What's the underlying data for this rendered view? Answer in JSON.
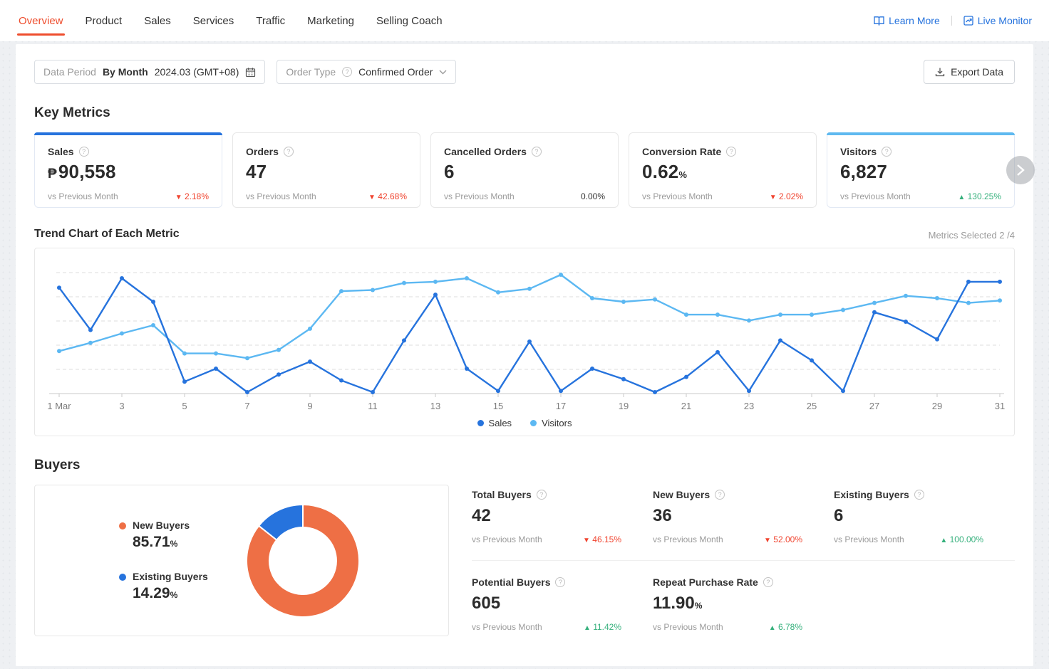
{
  "colors": {
    "brand_red": "#ee4d2d",
    "link_blue": "#2673dd",
    "series_sales": "#2673dd",
    "series_visitors": "#5cb8f2",
    "negative": "#f0432e",
    "positive": "#35b07c",
    "donut_new": "#ee6f45",
    "donut_existing": "#2673dd"
  },
  "nav": {
    "tabs": [
      {
        "label": "Overview",
        "active": true
      },
      {
        "label": "Product",
        "active": false
      },
      {
        "label": "Sales",
        "active": false
      },
      {
        "label": "Services",
        "active": false
      },
      {
        "label": "Traffic",
        "active": false
      },
      {
        "label": "Marketing",
        "active": false
      },
      {
        "label": "Selling Coach",
        "active": false
      }
    ],
    "learn_more": "Learn More",
    "live_monitor": "Live Monitor"
  },
  "filters": {
    "data_period_label": "Data Period",
    "data_period_mode": "By Month",
    "data_period_value": "2024.03 (GMT+08)",
    "order_type_label": "Order Type",
    "order_type_value": "Confirmed Order",
    "export_label": "Export Data"
  },
  "key_metrics": {
    "title": "Key Metrics",
    "compare_label": "vs Previous Month",
    "cards": [
      {
        "id": "sales",
        "label": "Sales",
        "currency": "₱",
        "value": "90,558",
        "change": "2.18%",
        "direction": "down",
        "selected": true,
        "accent": "#2673dd"
      },
      {
        "id": "orders",
        "label": "Orders",
        "value": "47",
        "change": "42.68%",
        "direction": "down",
        "selected": false
      },
      {
        "id": "cancelled-orders",
        "label": "Cancelled Orders",
        "value": "6",
        "change": "0.00%",
        "direction": "flat",
        "selected": false
      },
      {
        "id": "conversion-rate",
        "label": "Conversion Rate",
        "value": "0.62",
        "suffix": "%",
        "change": "2.02%",
        "direction": "down",
        "selected": false
      },
      {
        "id": "visitors",
        "label": "Visitors",
        "value": "6,827",
        "change": "130.25%",
        "direction": "up",
        "selected": true,
        "accent": "#5fb9f0"
      }
    ]
  },
  "trend": {
    "title": "Trend Chart of Each Metric",
    "metrics_selected": "Metrics Selected 2 /4"
  },
  "buyers": {
    "title": "Buyers",
    "compare_label": "vs Previous Month",
    "donut_legend": [
      {
        "label": "New Buyers",
        "value": "85.71",
        "suffix": "%",
        "color": "#ee6f45"
      },
      {
        "label": "Existing Buyers",
        "value": "14.29",
        "suffix": "%",
        "color": "#2673dd"
      }
    ],
    "stats": [
      {
        "label": "Total Buyers",
        "value": "42",
        "change": "46.15%",
        "direction": "down"
      },
      {
        "label": "New Buyers",
        "value": "36",
        "change": "52.00%",
        "direction": "down"
      },
      {
        "label": "Existing Buyers",
        "value": "6",
        "change": "100.00%",
        "direction": "up"
      },
      {
        "label": "Potential Buyers",
        "value": "605",
        "change": "11.42%",
        "direction": "up"
      },
      {
        "label": "Repeat Purchase Rate",
        "value": "11.90",
        "suffix": "%",
        "change": "6.78%",
        "direction": "up"
      }
    ]
  },
  "chart_data": [
    {
      "type": "line",
      "title": "Trend Chart of Each Metric (March 2024, daily)",
      "x_days": [
        1,
        2,
        3,
        4,
        5,
        6,
        7,
        8,
        9,
        10,
        11,
        12,
        13,
        14,
        15,
        16,
        17,
        18,
        19,
        20,
        21,
        22,
        23,
        24,
        25,
        26,
        27,
        28,
        29,
        30,
        31
      ],
      "tick_days": [
        1,
        3,
        5,
        7,
        9,
        11,
        13,
        15,
        17,
        19,
        21,
        23,
        25,
        27,
        29,
        31
      ],
      "tick_labels": [
        "1 Mar",
        "3",
        "5",
        "7",
        "9",
        "11",
        "13",
        "15",
        "17",
        "19",
        "21",
        "23",
        "25",
        "27",
        "29",
        "31"
      ],
      "y_axis_note": "y-axis has no tick labels in the UI; values are relative heights estimated from pixels, normalized 0-100",
      "grid": "5 horizontal dashed gridlines",
      "legend_position": "bottom-center",
      "series": [
        {
          "name": "Sales",
          "color": "#2673dd",
          "values": [
            89,
            53,
            97,
            77,
            9,
            20,
            0,
            15,
            26,
            10,
            0,
            44,
            83,
            20,
            1,
            43,
            1,
            20,
            11,
            0,
            13,
            34,
            1,
            44,
            27,
            1,
            68,
            60,
            45,
            94,
            94
          ]
        },
        {
          "name": "Visitors",
          "color": "#5cb8f2",
          "values": [
            35,
            42,
            50,
            57,
            33,
            33,
            29,
            36,
            54,
            86,
            87,
            93,
            94,
            97,
            85,
            88,
            100,
            80,
            77,
            79,
            66,
            66,
            61,
            66,
            66,
            70,
            76,
            82,
            80,
            76,
            78
          ]
        }
      ]
    },
    {
      "type": "pie",
      "donut": true,
      "title": "Buyers split",
      "labels": [
        "New Buyers",
        "Existing Buyers"
      ],
      "values": [
        85.71,
        14.29
      ],
      "colors": [
        "#ee6f45",
        "#2673dd"
      ],
      "start": "12 o'clock, clockwise, New Buyers first"
    }
  ]
}
